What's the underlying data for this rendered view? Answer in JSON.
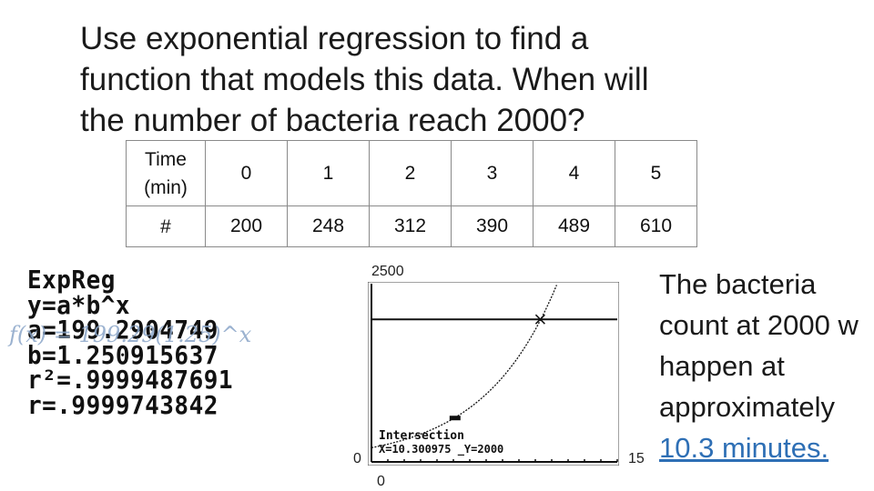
{
  "title": {
    "line1": "Use exponential regression to find a",
    "line2": "function that models this data. When will",
    "line3": "the number of bacteria reach 2000?"
  },
  "table": {
    "header_row1": "Time",
    "header_row2": "(min)",
    "times": [
      "0",
      "1",
      "2",
      "3",
      "4",
      "5"
    ],
    "count_label": "#",
    "counts": [
      "200",
      "248",
      "312",
      "390",
      "489",
      "610"
    ]
  },
  "calculator": {
    "lines": [
      "ExpReg",
      " y=a*b^x",
      " a=199.2904749",
      " b=1.250915637",
      " r²=.9999487691",
      " r=.9999743842"
    ]
  },
  "overlay_formula": "f(x) = 199.29(1.25)^x",
  "graph": {
    "ymax_label": "2500",
    "ymin_label": "0",
    "xmin_label": "0",
    "xmax_label": "15",
    "intersection_label": "Intersection",
    "intersection_readout": "X=10.300975 _Y=2000",
    "x_range": [
      0,
      15
    ],
    "y_range": [
      0,
      2500
    ],
    "line_y": 2000,
    "intersection_x": 10.300975
  },
  "answer": {
    "line1": "The bacteria",
    "line2": "count at 2000 w",
    "line3": "happen at",
    "line4": "approximately",
    "line5": "10.3 minutes."
  }
}
